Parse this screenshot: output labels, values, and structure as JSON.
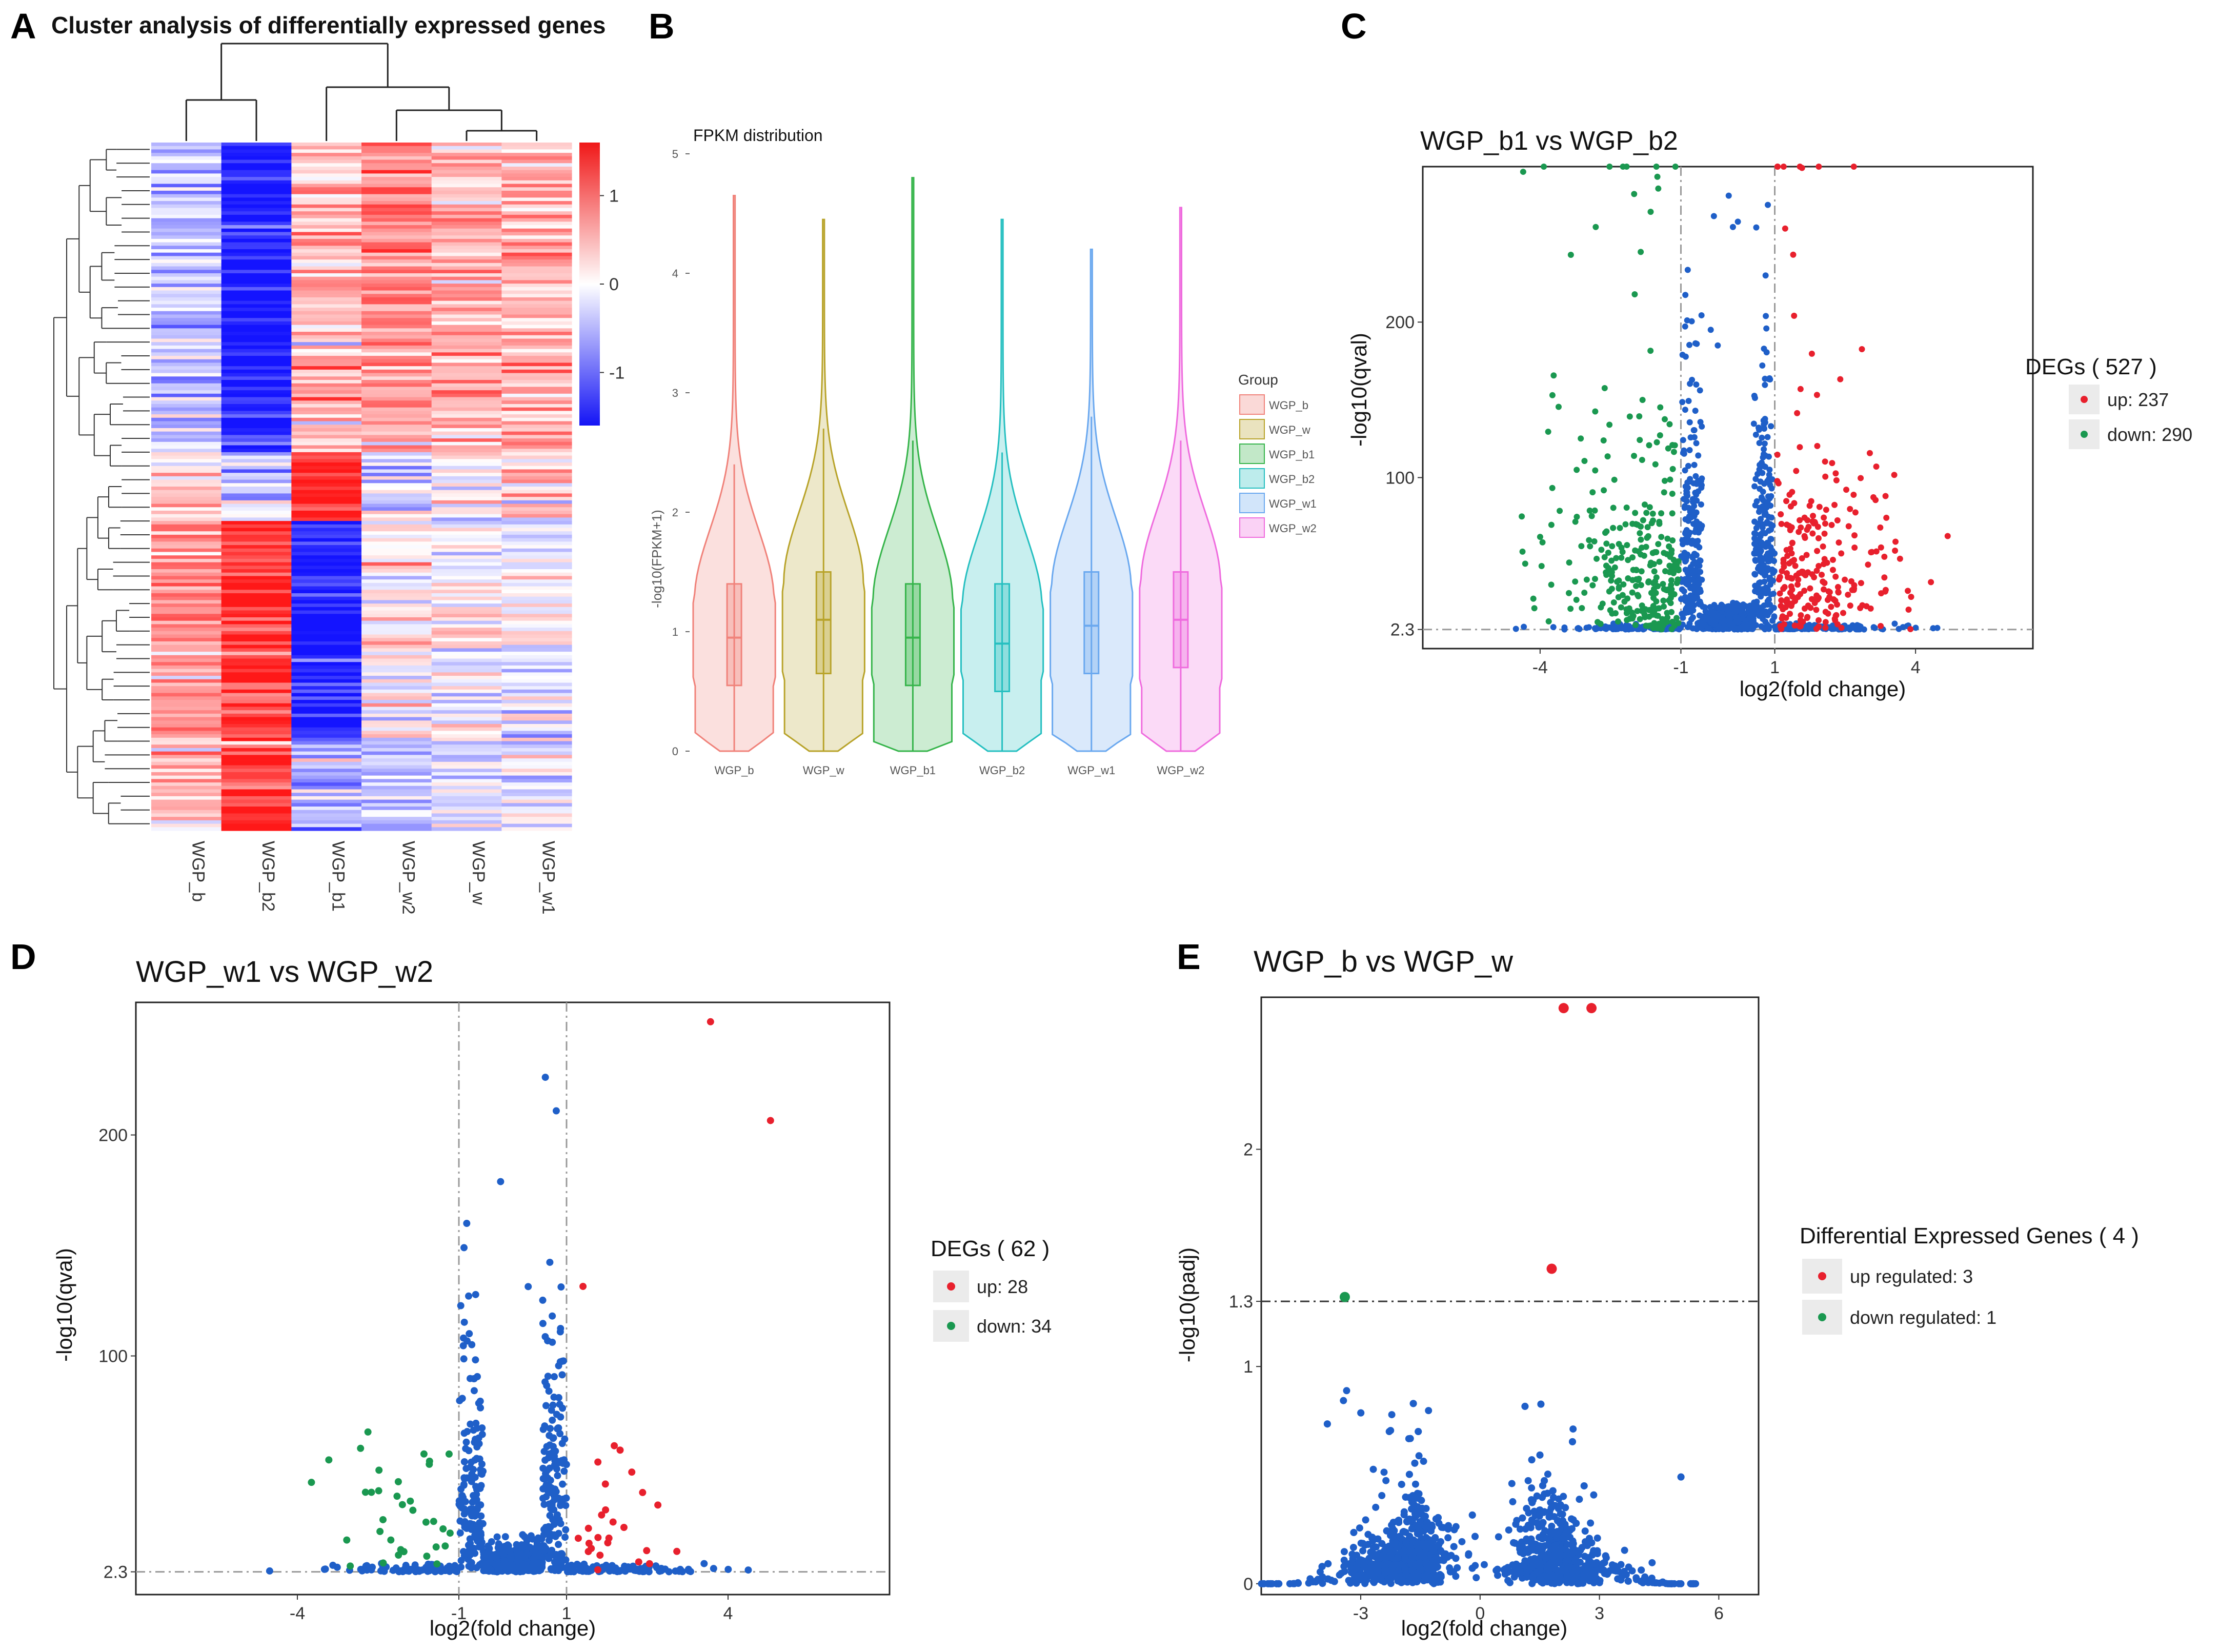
{
  "figure": {
    "panel_labels": [
      "A",
      "B",
      "C",
      "D",
      "E"
    ],
    "colors": {
      "up": "#e8202d",
      "down": "#1a9850",
      "ns": "#1f5fc8",
      "heat_high": "#f01818",
      "heat_low": "#1414f5"
    }
  },
  "chart_data": [
    {
      "id": "A",
      "type": "heatmap",
      "title": "Cluster analysis of differentially expressed genes",
      "columns": [
        "WGP_b",
        "WGP_b2",
        "WGP_b1",
        "WGP_w2",
        "WGP_w",
        "WGP_w1"
      ],
      "colorbar": {
        "ticks": [
          "1",
          "0",
          "-1"
        ],
        "range": [
          -1.6,
          1.6
        ]
      },
      "blocks": [
        {
          "rows": 0.45,
          "values": [
            -0.4,
            -1.6,
            0.5,
            0.8,
            0.5,
            0.5
          ]
        },
        {
          "rows": 0.1,
          "values": [
            0.3,
            -0.3,
            1.5,
            -0.2,
            0.0,
            0.2
          ]
        },
        {
          "rows": 0.32,
          "values": [
            0.7,
            1.4,
            -1.5,
            0.0,
            0.1,
            -0.1
          ]
        },
        {
          "rows": 0.13,
          "values": [
            0.4,
            1.5,
            -0.6,
            -0.6,
            -0.3,
            -0.2
          ]
        }
      ]
    },
    {
      "id": "B",
      "type": "violin",
      "title": "FPKM distribution",
      "ylabel": "-log10(FPKM+1)",
      "ylim": [
        0,
        5
      ],
      "yticks": [
        "0",
        "1",
        "2",
        "3",
        "4",
        "5"
      ],
      "legend_title": "Group",
      "series": [
        {
          "name": "WGP_b",
          "color": "#f0827a",
          "max": 4.65,
          "q1": 0.55,
          "median": 0.95,
          "q3": 1.4,
          "upper": 2.4
        },
        {
          "name": "WGP_w",
          "color": "#b8a32a",
          "max": 4.45,
          "q1": 0.65,
          "median": 1.1,
          "q3": 1.5,
          "upper": 2.7
        },
        {
          "name": "WGP_b1",
          "color": "#35b44a",
          "max": 4.8,
          "q1": 0.55,
          "median": 0.95,
          "q3": 1.4,
          "upper": 2.6
        },
        {
          "name": "WGP_b2",
          "color": "#25bfc0",
          "max": 4.45,
          "q1": 0.5,
          "median": 0.9,
          "q3": 1.4,
          "upper": 2.5
        },
        {
          "name": "WGP_w1",
          "color": "#6aa8ef",
          "max": 4.2,
          "q1": 0.65,
          "median": 1.05,
          "q3": 1.5,
          "upper": 2.8
        },
        {
          "name": "WGP_w2",
          "color": "#ef6bde",
          "max": 4.55,
          "q1": 0.7,
          "median": 1.1,
          "q3": 1.5,
          "upper": 2.6
        }
      ]
    },
    {
      "id": "C",
      "type": "scatter",
      "title": "WGP_b1  vs  WGP_b2",
      "xlabel": "log2(fold change)",
      "ylabel": "-log10(qval)",
      "xticks": [
        -4,
        -1,
        1,
        4
      ],
      "yticks": [
        2.3,
        100,
        200
      ],
      "xlim": [
        -6.5,
        6.5
      ],
      "ylim": [
        -10,
        300
      ],
      "legend_title": "DEGs ( 527 )",
      "legend": [
        {
          "label": "up: 237",
          "color": "#e8202d"
        },
        {
          "label": "down: 290",
          "color": "#1a9850"
        }
      ],
      "fc_threshold": 1,
      "y_threshold": 2.3,
      "n_up": 237,
      "n_down": 290,
      "n_ns": 1400,
      "spread_up": 125,
      "spread_ns": 220
    },
    {
      "id": "D",
      "type": "scatter",
      "title": "WGP_w1  vs  WGP_w2",
      "xlabel": "log2(fold change)",
      "ylabel": "-log10(qval)",
      "xticks": [
        -4,
        -1,
        1,
        4
      ],
      "yticks": [
        2.3,
        100,
        200
      ],
      "xlim": [
        -7,
        7
      ],
      "ylim": [
        -8,
        260
      ],
      "legend_title": "DEGs ( 62 )",
      "legend": [
        {
          "label": "up: 28",
          "color": "#e8202d"
        },
        {
          "label": "down: 34",
          "color": "#1a9850"
        }
      ],
      "fc_threshold": 1,
      "y_threshold": 2.3,
      "n_up": 28,
      "n_down": 34,
      "n_ns": 900,
      "spread_up": 60,
      "spread_ns": 150
    },
    {
      "id": "E",
      "type": "scatter",
      "title": "WGP_b vs WGP_w",
      "xlabel": "log2(fold change)",
      "ylabel": "-log10(padj)",
      "xticks": [
        -3,
        0,
        3,
        6
      ],
      "yticks": [
        0,
        1,
        1.3,
        2
      ],
      "xlim": [
        -5.5,
        7
      ],
      "ylim": [
        -0.05,
        2.7
      ],
      "legend_title": "Differential Expressed Genes ( 4 )",
      "legend": [
        {
          "label": "up regulated: 3",
          "color": "#e8202d"
        },
        {
          "label": "down regulated: 1",
          "color": "#1a9850"
        }
      ],
      "y_threshold": 1.3,
      "points_up": [
        [
          2.1,
          2.65
        ],
        [
          2.8,
          2.65
        ],
        [
          1.8,
          1.45
        ]
      ],
      "points_down": [
        [
          -3.4,
          1.32
        ]
      ],
      "n_ns": 1500
    }
  ]
}
